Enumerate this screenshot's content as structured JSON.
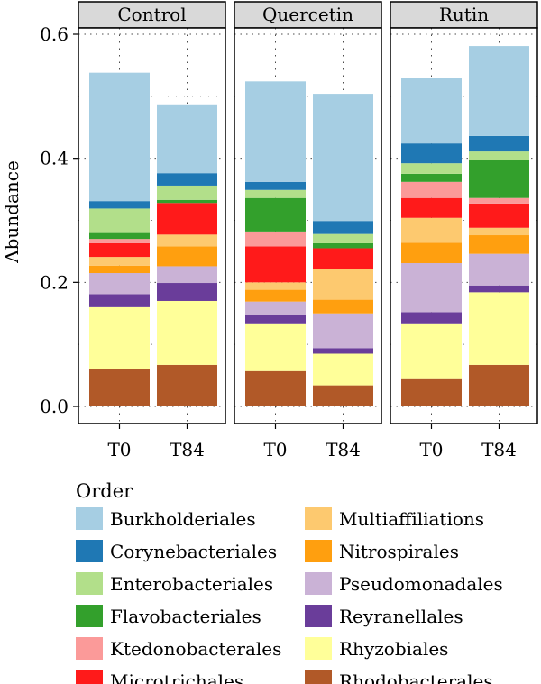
{
  "chart_data": {
    "type": "bar",
    "stacked": true,
    "ylabel": "Abundance",
    "ylim": [
      0,
      0.6
    ],
    "yticks": [
      "0.0",
      "0.2",
      "0.4",
      "0.6"
    ],
    "categories": [
      "T0",
      "T84"
    ],
    "facets": [
      "Control",
      "Quercetin",
      "Rutin"
    ],
    "legend": {
      "title": "Order",
      "placement": "bottom"
    },
    "series": [
      {
        "name": "Rhodobacterales",
        "color": "#b15928",
        "values": {
          "Control": [
            0.061,
            0.067
          ],
          "Quercetin": [
            0.057,
            0.034
          ],
          "Rutin": [
            0.044,
            0.067
          ]
        }
      },
      {
        "name": "Rhyzobiales",
        "color": "#ffff99",
        "values": {
          "Control": [
            0.099,
            0.103
          ],
          "Quercetin": [
            0.077,
            0.051
          ],
          "Rutin": [
            0.09,
            0.117
          ]
        }
      },
      {
        "name": "Reyranellales",
        "color": "#6a3d9a",
        "values": {
          "Control": [
            0.021,
            0.029
          ],
          "Quercetin": [
            0.013,
            0.009
          ],
          "Rutin": [
            0.018,
            0.011
          ]
        }
      },
      {
        "name": "Pseudomonadales",
        "color": "#cab2d6",
        "values": {
          "Control": [
            0.034,
            0.027
          ],
          "Quercetin": [
            0.022,
            0.056
          ],
          "Rutin": [
            0.079,
            0.051
          ]
        }
      },
      {
        "name": "Nitrospirales",
        "color": "#ff9f0f",
        "values": {
          "Control": [
            0.012,
            0.032
          ],
          "Quercetin": [
            0.019,
            0.022
          ],
          "Rutin": [
            0.033,
            0.03
          ]
        }
      },
      {
        "name": "Multiaffiliations",
        "color": "#fdc96f",
        "values": {
          "Control": [
            0.014,
            0.019
          ],
          "Quercetin": [
            0.012,
            0.05
          ],
          "Rutin": [
            0.04,
            0.012
          ]
        }
      },
      {
        "name": "Microtrichales",
        "color": "#ff1a1a",
        "values": {
          "Control": [
            0.022,
            0.051
          ],
          "Quercetin": [
            0.058,
            0.033
          ],
          "Rutin": [
            0.032,
            0.039
          ]
        }
      },
      {
        "name": "Ktedonobacterales",
        "color": "#fb9a99",
        "values": {
          "Control": [
            0.007,
            0.0
          ],
          "Quercetin": [
            0.024,
            0.0
          ],
          "Rutin": [
            0.026,
            0.009
          ]
        }
      },
      {
        "name": "Flavobacteriales",
        "color": "#33a02c",
        "values": {
          "Control": [
            0.011,
            0.005
          ],
          "Quercetin": [
            0.054,
            0.008
          ],
          "Rutin": [
            0.013,
            0.061
          ]
        }
      },
      {
        "name": "Enterobacteriales",
        "color": "#b2df8a",
        "values": {
          "Control": [
            0.038,
            0.023
          ],
          "Quercetin": [
            0.013,
            0.015
          ],
          "Rutin": [
            0.017,
            0.014
          ]
        }
      },
      {
        "name": "Corynebacteriales",
        "color": "#1f78b4",
        "values": {
          "Control": [
            0.012,
            0.02
          ],
          "Quercetin": [
            0.013,
            0.021
          ],
          "Rutin": [
            0.032,
            0.025
          ]
        }
      },
      {
        "name": "Burkholderiales",
        "color": "#a6cee3",
        "values": {
          "Control": [
            0.207,
            0.111
          ],
          "Quercetin": [
            0.162,
            0.205
          ],
          "Rutin": [
            0.106,
            0.145
          ]
        }
      }
    ],
    "legend_order": [
      "Burkholderiales",
      "Corynebacteriales",
      "Enterobacteriales",
      "Flavobacteriales",
      "Ktedonobacterales",
      "Microtrichales",
      "Multiaffiliations",
      "Nitrospirales",
      "Pseudomonadales",
      "Reyranellales",
      "Rhyzobiales",
      "Rhodobacterales"
    ]
  }
}
